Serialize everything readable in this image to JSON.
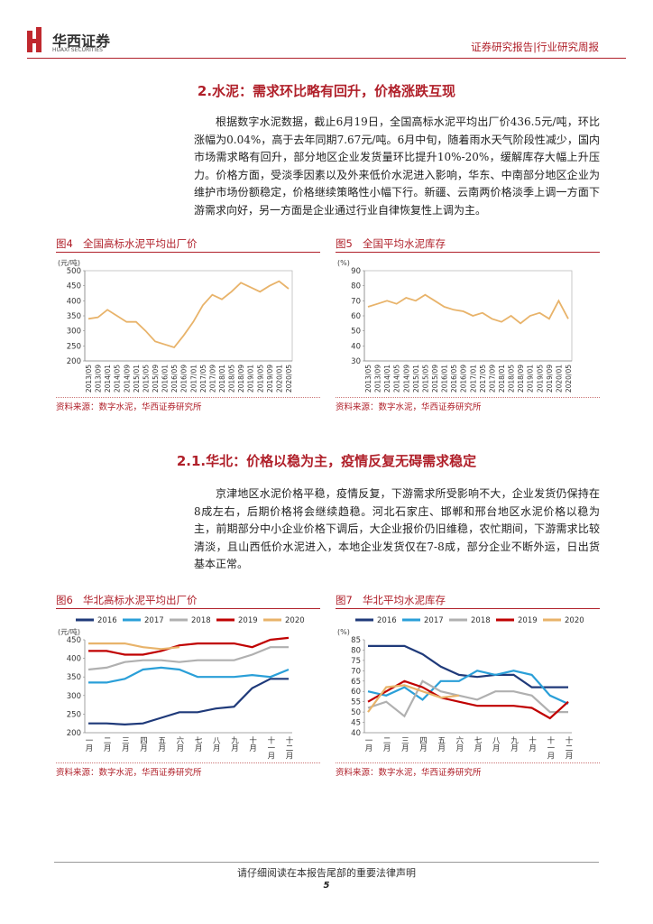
{
  "header": {
    "company": "华西证券",
    "company_en": "HUAXI SECURITIES",
    "report_type": "证券研究报告|行业研究周报"
  },
  "sections": [
    {
      "heading": "2.水泥：需求环比略有回升，价格涨跌互现",
      "paragraph": "根据数字水泥数据，截止6月19日，全国高标水泥平均出厂价436.5元/吨，环比涨幅为0.04%，高于去年同期7.67元/吨。6月中旬，随着雨水天气阶段性减少，国内市场需求略有回升，部分地区企业发货量环比提升10%-20%，缓解库存大幅上升压力。价格方面，受淡季因素以及外来低价水泥进入影响，华东、中南部分地区企业为维护市场份额稳定，价格继续策略性小幅下行。新疆、云南两价格淡季上调一方面下游需求向好，另一方面是企业通过行业自律恢复性上调为主。"
    },
    {
      "heading": "2.1.华北：价格以稳为主，疫情反复无碍需求稳定",
      "paragraph": "京津地区水泥价格平稳，疫情反复，下游需求所受影响不大，企业发货仍保持在8成左右，后期价格将会继续趋稳。河北石家庄、邯郸和邢台地区水泥价格以稳为主，前期部分中小企业价格下调后，大企业报价仍旧维稳，农忙期间，下游需求比较清淡，且山西低价水泥进入，本地企业发货仅在7-8成，部分企业不断外运，日出货基本正常。"
    }
  ],
  "chart_data": [
    {
      "label": "图4",
      "title": "全国高标水泥平均出厂价",
      "source": "资料来源：数字水泥，华西证券研究所",
      "type": "line",
      "y_label": "(元/吨)",
      "legend": false,
      "grid": false,
      "categories": [
        "2013/05",
        "2013/09",
        "2014/01",
        "2014/05",
        "2014/09",
        "2015/01",
        "2015/05",
        "2015/09",
        "2016/01",
        "2016/05",
        "2016/09",
        "2017/01",
        "2017/05",
        "2017/09",
        "2018/01",
        "2018/05",
        "2018/09",
        "2019/01",
        "2019/05",
        "2019/09",
        "2020/01",
        "2020/05"
      ],
      "series": [
        {
          "name": "全国高标水泥平均出厂价",
          "color": "#e8b36a",
          "values": [
            340,
            345,
            370,
            350,
            330,
            330,
            300,
            265,
            255,
            245,
            285,
            330,
            385,
            420,
            405,
            430,
            460,
            445,
            430,
            450,
            465,
            440
          ]
        }
      ],
      "ylim": [
        200,
        500
      ],
      "yticks": [
        200,
        250,
        300,
        350,
        400,
        450,
        500
      ]
    },
    {
      "label": "图5",
      "title": "全国平均水泥库存",
      "source": "资料来源：数字水泥，华西证券研究所",
      "type": "line",
      "y_label": "(%)",
      "legend": false,
      "grid": false,
      "categories": [
        "2013/05",
        "2013/09",
        "2014/01",
        "2014/05",
        "2014/09",
        "2015/01",
        "2015/05",
        "2015/09",
        "2016/01",
        "2016/05",
        "2016/09",
        "2017/01",
        "2017/05",
        "2017/09",
        "2018/01",
        "2018/05",
        "2018/09",
        "2019/01",
        "2019/05",
        "2019/09",
        "2020/01",
        "2020/05"
      ],
      "series": [
        {
          "name": "全国平均水泥库存",
          "color": "#e8b36a",
          "values": [
            66,
            68,
            70,
            68,
            72,
            70,
            74,
            70,
            66,
            64,
            63,
            60,
            62,
            58,
            56,
            60,
            55,
            60,
            62,
            58,
            70,
            58
          ]
        }
      ],
      "ylim": [
        30,
        90
      ],
      "yticks": [
        30,
        40,
        50,
        60,
        70,
        80,
        90
      ]
    },
    {
      "label": "图6",
      "title": "华北高标水泥平均出厂价",
      "source": "资料来源：数字水泥，华西证券研究所",
      "type": "line",
      "y_label": "(元/吨)",
      "legend": true,
      "grid": false,
      "categories": [
        "一月",
        "二月",
        "三月",
        "四月",
        "五月",
        "六月",
        "七月",
        "八月",
        "九月",
        "十月",
        "十一月",
        "十二月"
      ],
      "series": [
        {
          "name": "2016",
          "color": "#1f3a7a",
          "values": [
            225,
            225,
            222,
            225,
            240,
            255,
            255,
            265,
            270,
            320,
            345,
            345
          ]
        },
        {
          "name": "2017",
          "color": "#2a9fd8",
          "values": [
            335,
            335,
            345,
            370,
            375,
            370,
            350,
            350,
            350,
            355,
            350,
            370
          ]
        },
        {
          "name": "2018",
          "color": "#b0b0b0",
          "values": [
            370,
            375,
            390,
            395,
            395,
            390,
            395,
            395,
            395,
            410,
            430,
            430
          ]
        },
        {
          "name": "2019",
          "color": "#c00000",
          "values": [
            420,
            420,
            410,
            410,
            420,
            435,
            440,
            440,
            440,
            430,
            450,
            455
          ]
        },
        {
          "name": "2020",
          "color": "#e8b36a",
          "values": [
            440,
            440,
            440,
            430,
            425,
            430,
            null,
            null,
            null,
            null,
            null,
            null
          ]
        }
      ],
      "ylim": [
        200,
        450
      ],
      "yticks": [
        200,
        250,
        300,
        350,
        400,
        450
      ]
    },
    {
      "label": "图7",
      "title": "华北平均水泥库存",
      "source": "资料来源：数字水泥，华西证券研究所",
      "type": "line",
      "y_label": "(%)",
      "legend": true,
      "grid": false,
      "categories": [
        "一月",
        "二月",
        "三月",
        "四月",
        "五月",
        "六月",
        "七月",
        "八月",
        "九月",
        "十月",
        "十一月",
        "十二月"
      ],
      "series": [
        {
          "name": "2016",
          "color": "#1f3a7a",
          "values": [
            82,
            82,
            82,
            78,
            72,
            68,
            67,
            68,
            68,
            62,
            62,
            62
          ]
        },
        {
          "name": "2017",
          "color": "#2a9fd8",
          "values": [
            60,
            58,
            62,
            56,
            65,
            65,
            70,
            68,
            70,
            68,
            58,
            54
          ]
        },
        {
          "name": "2018",
          "color": "#b0b0b0",
          "values": [
            52,
            55,
            48,
            65,
            60,
            58,
            56,
            60,
            60,
            58,
            50,
            50
          ]
        },
        {
          "name": "2019",
          "color": "#c00000",
          "values": [
            55,
            60,
            65,
            62,
            57,
            55,
            53,
            53,
            53,
            52,
            47,
            55
          ]
        },
        {
          "name": "2020",
          "color": "#e8b36a",
          "values": [
            50,
            62,
            63,
            60,
            57,
            58,
            null,
            null,
            null,
            null,
            null,
            null
          ]
        }
      ],
      "ylim": [
        40,
        85
      ],
      "yticks": [
        40,
        45,
        50,
        55,
        60,
        65,
        70,
        75,
        80,
        85
      ]
    }
  ],
  "footer": {
    "notice": "请仔细阅读在本报告尾部的重要法律声明",
    "page": "5"
  }
}
